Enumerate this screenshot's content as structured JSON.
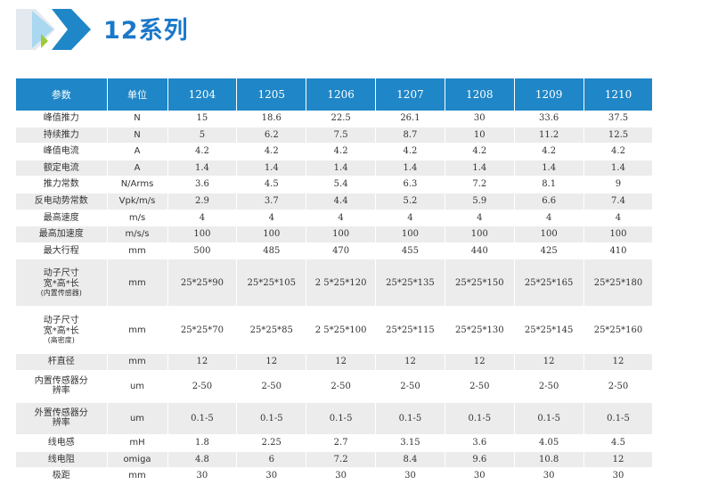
{
  "title": "12系列",
  "colors": {
    "accent": "#1a78c9",
    "header_bg": "#1f86c7",
    "stripe": "#ececec",
    "logo_light": "#a9d8f0",
    "logo_green": "#9ccc3a"
  },
  "header": {
    "param": "参数",
    "unit": "单位",
    "models": [
      "1204",
      "1205",
      "1206",
      "1207",
      "1208",
      "1209",
      "1210"
    ]
  },
  "rows": [
    {
      "param": "峰值推力",
      "unit": "N",
      "values": [
        "15",
        "18.6",
        "22.5",
        "26.1",
        "30",
        "33.6",
        "37.5"
      ]
    },
    {
      "param": "持续推力",
      "unit": "N",
      "values": [
        "5",
        "6.2",
        "7.5",
        "8.7",
        "10",
        "11.2",
        "12.5"
      ]
    },
    {
      "param": "峰值电流",
      "unit": "A",
      "values": [
        "4.2",
        "4.2",
        "4.2",
        "4.2",
        "4.2",
        "4.2",
        "4.2"
      ]
    },
    {
      "param": "额定电流",
      "unit": "A",
      "values": [
        "1.4",
        "1.4",
        "1.4",
        "1.4",
        "1.4",
        "1.4",
        "1.4"
      ]
    },
    {
      "param": "推力常数",
      "unit": "N/Arms",
      "values": [
        "3.6",
        "4.5",
        "5.4",
        "6.3",
        "7.2",
        "8.1",
        "9"
      ]
    },
    {
      "param": "反电动势常数",
      "unit": "Vpk/m/s",
      "values": [
        "2.9",
        "3.7",
        "4.4",
        "5.2",
        "5.9",
        "6.6",
        "7.4"
      ]
    },
    {
      "param": "最高速度",
      "unit": "m/s",
      "values": [
        "4",
        "4",
        "4",
        "4",
        "4",
        "4",
        "4"
      ]
    },
    {
      "param": "最高加速度",
      "unit": "m/s/s",
      "values": [
        "100",
        "100",
        "100",
        "100",
        "100",
        "100",
        "100"
      ]
    },
    {
      "param": "最大行程",
      "unit": "mm",
      "values": [
        "500",
        "485",
        "470",
        "455",
        "440",
        "425",
        "410"
      ]
    },
    {
      "param_lines": [
        "动子尺寸",
        "宽*高*长",
        "(内置传感器)"
      ],
      "unit": "mm",
      "values": [
        "25*25*90",
        "25*25*105",
        "2 5*25*120",
        "25*25*135",
        "25*25*150",
        "25*25*165",
        "25*25*180"
      ]
    },
    {
      "param_lines": [
        "动子尺寸",
        "宽*高*长",
        "(高密度)"
      ],
      "unit": "mm",
      "values": [
        "25*25*70",
        "25*25*85",
        "2 5*25*100",
        "25*25*115",
        "25*25*130",
        "25*25*145",
        "25*25*160"
      ]
    },
    {
      "param": "杆直径",
      "unit": "mm",
      "values": [
        "12",
        "12",
        "12",
        "12",
        "12",
        "12",
        "12"
      ]
    },
    {
      "param_lines": [
        "内置传感器分",
        "辨率"
      ],
      "unit": "um",
      "values": [
        "2-50",
        "2-50",
        "2-50",
        "2-50",
        "2-50",
        "2-50",
        "2-50"
      ]
    },
    {
      "param_lines": [
        "外置传感器分",
        "辨率"
      ],
      "unit": "um",
      "values": [
        "0.1-5",
        "0.1-5",
        "0.1-5",
        "0.1-5",
        "0.1-5",
        "0.1-5",
        "0.1-5"
      ]
    },
    {
      "param": "线电感",
      "unit": "mH",
      "values": [
        "1.8",
        "2.25",
        "2.7",
        "3.15",
        "3.6",
        "4.05",
        "4.5"
      ]
    },
    {
      "param": "线电阻",
      "unit": "omiga",
      "values": [
        "4.8",
        "6",
        "7.2",
        "8.4",
        "9.6",
        "10.8",
        "12"
      ]
    },
    {
      "param": "极距",
      "unit": "mm",
      "values": [
        "30",
        "30",
        "30",
        "30",
        "30",
        "30",
        "30"
      ]
    }
  ]
}
